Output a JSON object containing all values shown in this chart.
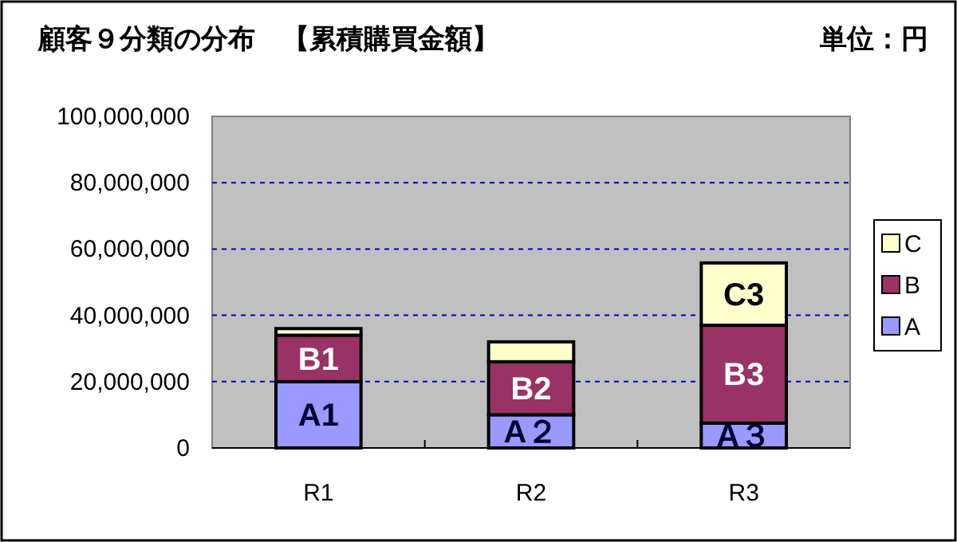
{
  "chart_data": {
    "type": "bar",
    "title": "顧客９分類の分布　【累積購買金額】",
    "annotations": [
      "単位：円"
    ],
    "categories": [
      "R1",
      "R2",
      "R3"
    ],
    "stacked": true,
    "series": [
      {
        "name": "A",
        "color": "#9999ff",
        "values": [
          20000000,
          10000000,
          7500000
        ],
        "value_labels": [
          "A1",
          "A２",
          "A３"
        ]
      },
      {
        "name": "B",
        "color": "#993366",
        "values": [
          14000000,
          16000000,
          29500000
        ],
        "value_labels": [
          "B1",
          "B2",
          "B3"
        ]
      },
      {
        "name": "C",
        "color": "#ffffcc",
        "values": [
          2000000,
          6000000,
          18800000
        ],
        "value_labels": [
          null,
          null,
          "C3"
        ]
      }
    ],
    "ylim": [
      0,
      100000000
    ],
    "yticks": [
      0,
      {
        "value": 20000000,
        "label": "20,000,000"
      },
      {
        "value": 40000000,
        "label": "40,000,000"
      },
      {
        "value": 60000000,
        "label": "60,000,000"
      },
      {
        "value": 80000000,
        "label": "80,000,000"
      },
      {
        "value": 100000000,
        "label": "100,000,000"
      }
    ],
    "grid": "y",
    "legend": "right"
  }
}
